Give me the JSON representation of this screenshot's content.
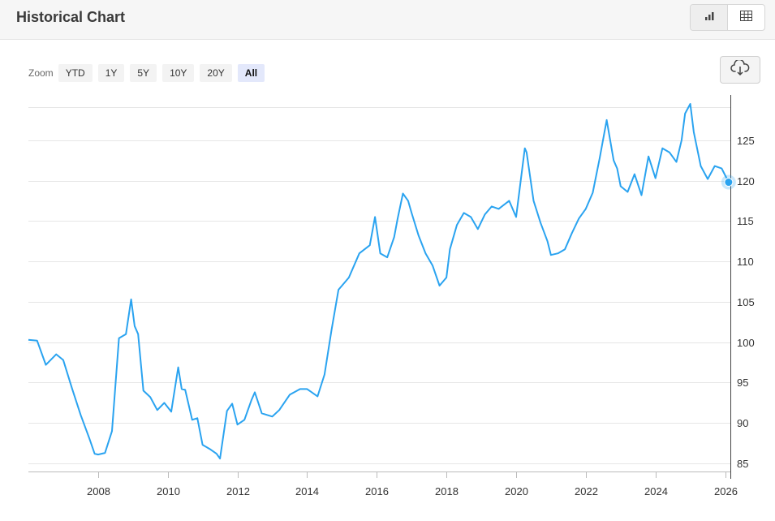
{
  "header": {
    "title": "Historical Chart"
  },
  "toolbar": {
    "zoom_label": "Zoom",
    "zoom_options": [
      "YTD",
      "1Y",
      "5Y",
      "10Y",
      "20Y",
      "All"
    ],
    "zoom_selected": "All",
    "view_modes": [
      "bar-chart-icon",
      "table-icon"
    ],
    "download_icon": "cloud-download-icon"
  },
  "chart_data": {
    "type": "line",
    "title": "",
    "xlabel": "",
    "ylabel": "",
    "x_ticks": [
      "2008",
      "2010",
      "2012",
      "2014",
      "2016",
      "2018",
      "2020",
      "2022",
      "2024",
      "2026"
    ],
    "y_ticks": [
      "85",
      "90",
      "95",
      "100",
      "105",
      "110",
      "115",
      "120",
      "125"
    ],
    "xlim": [
      2006.0,
      2026.15
    ],
    "ylim": [
      84,
      130.5
    ],
    "grid": "horizontal",
    "y_axis_side": "right",
    "line_color": "#2aa3f0",
    "last_value": 119.8,
    "series": [
      {
        "x": [
          2006.0,
          2006.25,
          2006.5,
          2006.8,
          2007.0,
          2007.25,
          2007.5,
          2007.75,
          2007.9,
          2008.0,
          2008.2,
          2008.4,
          2008.6,
          2008.8,
          2008.95,
          2009.05,
          2009.15,
          2009.3,
          2009.5,
          2009.7,
          2009.9,
          2010.1,
          2010.3,
          2010.4,
          2010.5,
          2010.7,
          2010.85,
          2011.0,
          2011.2,
          2011.4,
          2011.5,
          2011.7,
          2011.85,
          2012.0,
          2012.2,
          2012.4,
          2012.5,
          2012.7,
          2013.0,
          2013.2,
          2013.5,
          2013.8,
          2014.0,
          2014.3,
          2014.5,
          2014.7,
          2014.9,
          2015.0,
          2015.2,
          2015.5,
          2015.8,
          2015.95,
          2016.1,
          2016.3,
          2016.5,
          2016.6,
          2016.75,
          2016.9,
          2017.0,
          2017.2,
          2017.4,
          2017.6,
          2017.8,
          2018.0,
          2018.1,
          2018.3,
          2018.5,
          2018.7,
          2018.9,
          2019.1,
          2019.3,
          2019.5,
          2019.8,
          2020.0,
          2020.25,
          2020.3,
          2020.5,
          2020.7,
          2020.9,
          2021.0,
          2021.2,
          2021.4,
          2021.6,
          2021.8,
          2022.0,
          2022.2,
          2022.4,
          2022.6,
          2022.8,
          2022.9,
          2023.0,
          2023.2,
          2023.4,
          2023.6,
          2023.8,
          2024.0,
          2024.2,
          2024.4,
          2024.6,
          2024.75,
          2024.85,
          2025.0,
          2025.1,
          2025.3,
          2025.5,
          2025.7,
          2025.9,
          2026.1
        ],
        "values": [
          100.3,
          100.2,
          97.2,
          98.5,
          97.8,
          94.3,
          91.0,
          88.1,
          86.2,
          86.1,
          86.3,
          89.0,
          100.5,
          101.0,
          105.3,
          102.0,
          101.0,
          94.0,
          93.2,
          91.6,
          92.5,
          91.4,
          96.9,
          94.2,
          94.1,
          90.4,
          90.6,
          87.3,
          86.8,
          86.2,
          85.6,
          91.5,
          92.4,
          89.8,
          90.4,
          92.8,
          93.8,
          91.2,
          90.8,
          91.6,
          93.5,
          94.2,
          94.2,
          93.3,
          96.0,
          101.5,
          106.5,
          107.0,
          108.0,
          111.0,
          112.0,
          115.5,
          111.0,
          110.5,
          113.0,
          115.3,
          118.4,
          117.5,
          116.0,
          113.2,
          111.0,
          109.5,
          107.0,
          108.0,
          111.5,
          114.5,
          116.0,
          115.5,
          114.0,
          115.8,
          116.8,
          116.5,
          117.5,
          115.5,
          124.0,
          123.5,
          117.5,
          114.8,
          112.5,
          110.8,
          111.0,
          111.5,
          113.5,
          115.3,
          116.5,
          118.5,
          122.8,
          127.5,
          122.5,
          121.5,
          119.3,
          118.6,
          120.8,
          118.2,
          123.0,
          120.3,
          124.0,
          123.5,
          122.3,
          125.0,
          128.3,
          129.5,
          126.0,
          121.8,
          120.2,
          121.8,
          121.5,
          119.8
        ]
      }
    ]
  }
}
